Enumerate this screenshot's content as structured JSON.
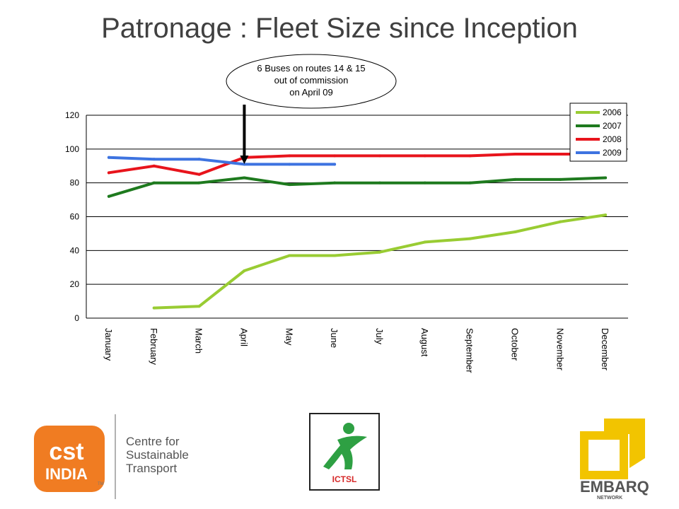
{
  "title": "Patronage : Fleet Size since Inception",
  "chart_data": {
    "type": "line",
    "categories": [
      "January",
      "February",
      "March",
      "April",
      "May",
      "June",
      "July",
      "August",
      "September",
      "October",
      "November",
      "December"
    ],
    "ylim": [
      0,
      120
    ],
    "yticks": [
      0,
      20,
      40,
      60,
      80,
      100,
      120
    ],
    "grid": true,
    "legend_position": "top-right",
    "series": [
      {
        "name": "2006",
        "color": "#99cc33",
        "values": [
          null,
          6,
          7,
          28,
          37,
          37,
          39,
          45,
          47,
          51,
          57,
          61
        ]
      },
      {
        "name": "2007",
        "color": "#1e7a1e",
        "values": [
          72,
          80,
          80,
          83,
          79,
          80,
          80,
          80,
          80,
          82,
          82,
          83
        ]
      },
      {
        "name": "2008",
        "color": "#e8141c",
        "values": [
          86,
          90,
          85,
          95,
          96,
          96,
          96,
          96,
          96,
          97,
          97,
          97
        ]
      },
      {
        "name": "2009",
        "color": "#3d73e0",
        "values": [
          95,
          94,
          94,
          91,
          91,
          91,
          null,
          null,
          null,
          null,
          null,
          null
        ]
      }
    ],
    "annotation": {
      "lines": [
        "6 Buses on routes 14 & 15",
        "out of commission",
        "on April 09"
      ],
      "category": "April"
    }
  },
  "logos": {
    "cst": {
      "mark": "cst",
      "sub": "INDIA",
      "tm": "TM",
      "name_lines": [
        "Centre for",
        "Sustainable",
        "Transport"
      ]
    },
    "mid": {
      "text": "ICTSL"
    },
    "embarq": {
      "name": "EMBARQ",
      "sub": "NETWORK"
    }
  }
}
